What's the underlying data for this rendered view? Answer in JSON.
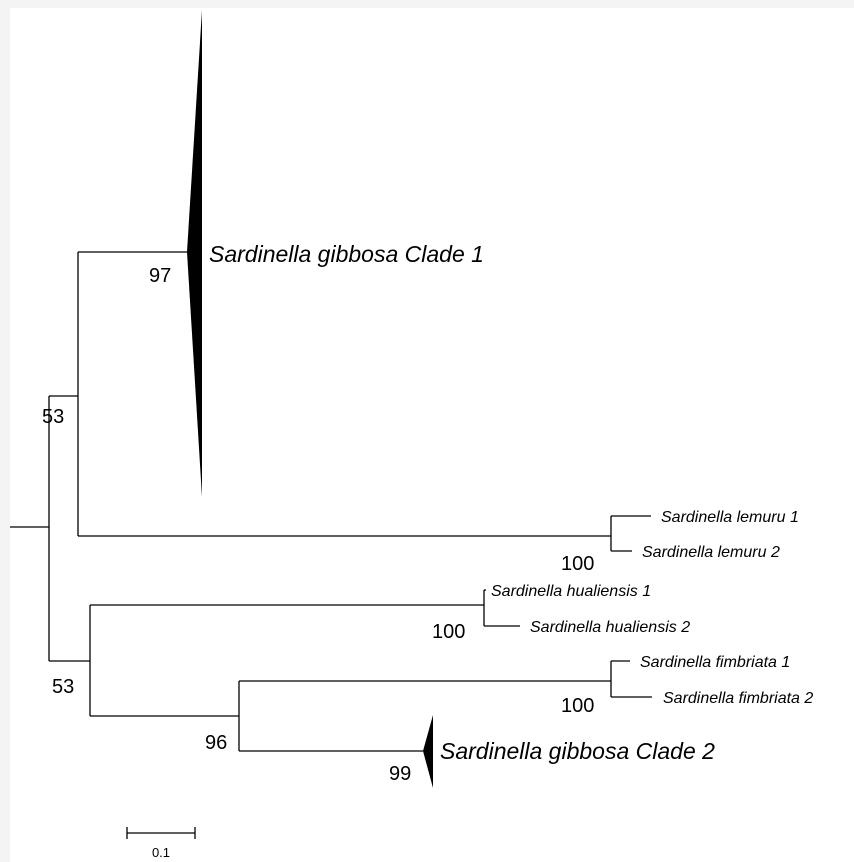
{
  "tree": {
    "clades": {
      "gibbosa1": "Sardinella gibbosa Clade 1",
      "gibbosa2": "Sardinella gibbosa Clade 2"
    },
    "taxa": {
      "lemuru1": "Sardinella lemuru 1",
      "lemuru2": "Sardinella lemuru 2",
      "hualiensis1": "Sardinella hualiensis 1",
      "hualiensis2": "Sardinella hualiensis 2",
      "fimbriata1": "Sardinella fimbriata 1",
      "fimbriata2": "Sardinella fimbriata 2"
    },
    "support": {
      "gibbosa1": "97",
      "upper": "53",
      "lemuru": "100",
      "lower": "53",
      "hualiensis": "100",
      "fimbriata": "100",
      "fimbriata_gibbosa2": "96",
      "gibbosa2": "99"
    }
  },
  "scale_bar": {
    "label": "0.1"
  }
}
